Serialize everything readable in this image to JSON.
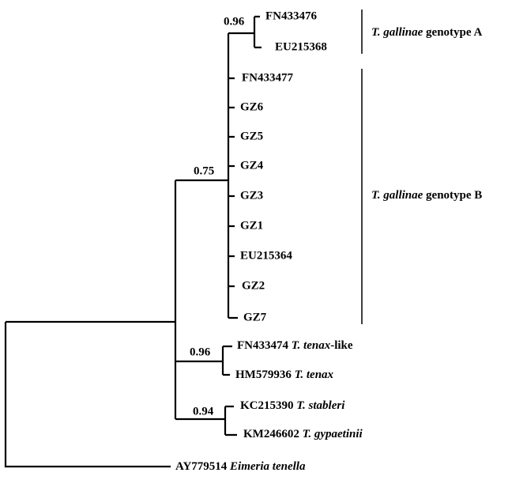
{
  "support_values": [
    "0.96",
    "0.75",
    "0.96",
    "0.94"
  ],
  "leaves": [
    {
      "id": "FN433476"
    },
    {
      "id": "EU215368"
    },
    {
      "id": "FN433477"
    },
    {
      "id": "GZ6"
    },
    {
      "id": "GZ5"
    },
    {
      "id": "GZ4"
    },
    {
      "id": "GZ3"
    },
    {
      "id": "GZ1"
    },
    {
      "id": "EU215364"
    },
    {
      "id": "GZ2"
    },
    {
      "id": "GZ7"
    },
    {
      "id": "FN433474",
      "species": "T. tenax",
      "suffix": "-like"
    },
    {
      "id": "HM579936",
      "species": "T. tenax"
    },
    {
      "id": "KC215390",
      "species": "T. stableri"
    },
    {
      "id": "KM246602",
      "species": "T. gypaetinii"
    },
    {
      "id": "AY779514",
      "species": "Eimeria tenella"
    }
  ],
  "clades": [
    {
      "species": "T. gallinae",
      "text": "genotype A"
    },
    {
      "species": "T. gallinae",
      "text": "genotype B"
    }
  ]
}
